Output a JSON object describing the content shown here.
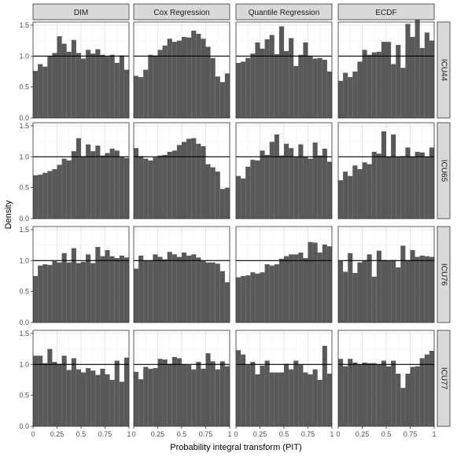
{
  "chart_data": {
    "type": "bar",
    "subtype": "faceted-histogram-grid",
    "xlabel": "Probability integral transform (PIT)",
    "ylabel": "Density",
    "xlim": [
      0,
      1
    ],
    "ylim": [
      0,
      1.55
    ],
    "xticks": [
      0,
      0.25,
      0.5,
      0.75,
      1
    ],
    "xtick_labels": [
      "0",
      "0.25",
      "0.5",
      "0.75",
      "1"
    ],
    "yticks": [
      0,
      0.5,
      1,
      1.5
    ],
    "ytick_labels": [
      "0.0",
      "0.5",
      "1.0",
      "1.5"
    ],
    "reference_line_y": 1,
    "bins": 20,
    "bar_color": "#595959",
    "strip_fill": "#d9d9d9",
    "grid": true,
    "columns": [
      "DIM",
      "Cox Regression",
      "Quantile Regression",
      "ECDF"
    ],
    "rows": [
      "ICU44",
      "ICU65",
      "ICU76",
      "ICU77"
    ],
    "panels": [
      {
        "row": "ICU44",
        "column": "DIM",
        "densities": [
          0.76,
          0.87,
          0.83,
          1.0,
          1.05,
          1.32,
          1.2,
          1.07,
          1.26,
          1.05,
          0.96,
          1.1,
          1.04,
          1.11,
          1.02,
          0.99,
          1.02,
          0.89,
          1.01,
          0.78
        ]
      },
      {
        "row": "ICU44",
        "column": "Cox Regression",
        "densities": [
          0.68,
          0.66,
          0.78,
          1.02,
          1.01,
          1.1,
          1.17,
          1.28,
          1.23,
          1.25,
          1.31,
          1.3,
          1.41,
          1.36,
          1.28,
          1.15,
          0.97,
          0.67,
          0.58,
          0.72
        ]
      },
      {
        "row": "ICU44",
        "column": "Quantile Regression",
        "densities": [
          0.89,
          0.91,
          0.97,
          1.04,
          1.22,
          1.12,
          1.27,
          1.34,
          1.03,
          1.48,
          1.08,
          1.29,
          0.84,
          1.02,
          1.22,
          1.0,
          0.96,
          0.97,
          0.94,
          0.75
        ]
      },
      {
        "row": "ICU44",
        "column": "ECDF",
        "densities": [
          0.6,
          0.73,
          0.66,
          0.75,
          0.91,
          1.1,
          1.02,
          1.06,
          1.07,
          1.23,
          1.23,
          0.87,
          1.18,
          0.81,
          1.52,
          1.31,
          1.63,
          1.13,
          1.38,
          1.25
        ]
      },
      {
        "row": "ICU65",
        "column": "DIM",
        "densities": [
          0.7,
          0.71,
          0.74,
          0.77,
          0.8,
          0.87,
          0.97,
          0.94,
          1.09,
          1.3,
          1.01,
          1.2,
          1.09,
          1.18,
          1.02,
          1.06,
          1.13,
          1.1,
          1.0,
          0.98
        ]
      },
      {
        "row": "ICU65",
        "column": "Cox Regression",
        "densities": [
          1.14,
          1.01,
          0.97,
          0.94,
          0.99,
          1.02,
          1.03,
          1.08,
          1.1,
          1.19,
          1.24,
          1.29,
          1.3,
          1.21,
          1.17,
          0.88,
          0.83,
          0.76,
          0.48,
          0.5
        ]
      },
      {
        "row": "ICU65",
        "column": "Quantile Regression",
        "densities": [
          0.69,
          0.65,
          0.84,
          0.95,
          0.94,
          1.1,
          1.03,
          1.24,
          1.36,
          1.02,
          1.21,
          1.14,
          1.0,
          1.2,
          1.0,
          0.97,
          1.23,
          1.02,
          1.13,
          0.92
        ]
      },
      {
        "row": "ICU65",
        "column": "ECDF",
        "densities": [
          0.62,
          0.76,
          0.69,
          0.86,
          0.8,
          0.91,
          0.88,
          1.08,
          1.05,
          1.41,
          1.0,
          1.36,
          1.0,
          1.01,
          1.15,
          1.0,
          1.08,
          1.07,
          1.0,
          1.15
        ]
      },
      {
        "row": "ICU76",
        "column": "DIM",
        "densities": [
          0.75,
          0.92,
          0.94,
          0.93,
          0.99,
          0.97,
          1.12,
          0.97,
          1.2,
          0.96,
          0.98,
          1.1,
          0.96,
          1.22,
          1.07,
          1.17,
          1.07,
          1.04,
          1.08,
          1.05
        ]
      },
      {
        "row": "ICU76",
        "column": "Cox Regression",
        "densities": [
          0.87,
          1.08,
          1.0,
          1.0,
          1.1,
          1.06,
          1.02,
          1.14,
          1.1,
          1.06,
          1.13,
          1.08,
          1.1,
          1.05,
          1.0,
          0.97,
          0.97,
          0.95,
          0.83,
          0.65
        ]
      },
      {
        "row": "ICU76",
        "column": "Quantile Regression",
        "densities": [
          0.73,
          0.75,
          0.76,
          0.81,
          0.79,
          0.81,
          0.94,
          0.92,
          0.94,
          1.03,
          1.07,
          1.1,
          1.1,
          1.13,
          1.04,
          1.3,
          1.29,
          1.13,
          1.26,
          1.23
        ]
      },
      {
        "row": "ICU76",
        "column": "ECDF",
        "densities": [
          0.99,
          0.82,
          1.12,
          0.8,
          0.97,
          1.0,
          1.1,
          0.74,
          1.16,
          1.01,
          1.0,
          1.01,
          0.89,
          1.24,
          1.01,
          1.17,
          1.06,
          1.08,
          1.07,
          1.06
        ]
      },
      {
        "row": "ICU77",
        "column": "DIM",
        "densities": [
          1.14,
          1.14,
          1.02,
          1.25,
          1.04,
          1.01,
          1.14,
          0.91,
          1.1,
          0.92,
          0.87,
          0.94,
          0.9,
          0.83,
          0.93,
          0.84,
          0.75,
          1.06,
          0.72,
          1.11
        ]
      },
      {
        "row": "ICU77",
        "column": "Cox Regression",
        "densities": [
          0.88,
          0.76,
          0.96,
          0.93,
          0.94,
          1.09,
          1.08,
          1.01,
          1.12,
          1.1,
          1.0,
          0.99,
          0.92,
          1.04,
          0.93,
          1.18,
          1.05,
          0.92,
          1.05,
          0.97
        ]
      },
      {
        "row": "ICU77",
        "column": "Quantile Regression",
        "densities": [
          1.23,
          1.16,
          0.99,
          1.04,
          0.84,
          0.98,
          1.06,
          0.87,
          0.87,
          0.87,
          1.01,
          0.92,
          1.06,
          0.99,
          0.87,
          0.84,
          0.92,
          0.75,
          1.3,
          0.85
        ]
      },
      {
        "row": "ICU77",
        "column": "ECDF",
        "densities": [
          1.09,
          0.97,
          1.09,
          1.03,
          1.0,
          1.03,
          1.02,
          1.02,
          1.0,
          1.06,
          0.97,
          1.06,
          0.85,
          0.62,
          0.85,
          0.96,
          0.97,
          1.1,
          1.16,
          1.22
        ]
      }
    ]
  }
}
